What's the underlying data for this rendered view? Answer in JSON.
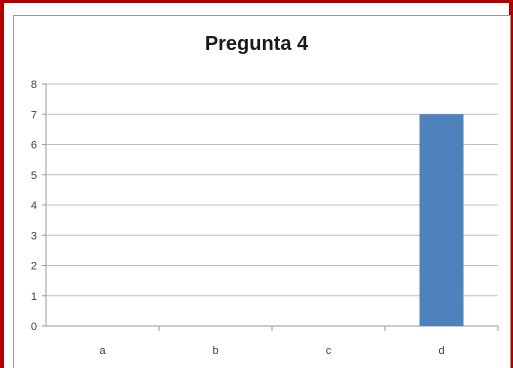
{
  "chart_data": {
    "type": "bar",
    "title": "Pregunta 4",
    "categories": [
      "a",
      "b",
      "c",
      "d"
    ],
    "values": [
      0,
      0,
      0,
      7
    ],
    "ylim": [
      0,
      8
    ],
    "yticks": [
      0,
      1,
      2,
      3,
      4,
      5,
      6,
      7,
      8
    ],
    "grid": true,
    "colors": {
      "bar": "#4f81bd",
      "grid": "#bfbfbf",
      "frame": "#b00000"
    }
  }
}
